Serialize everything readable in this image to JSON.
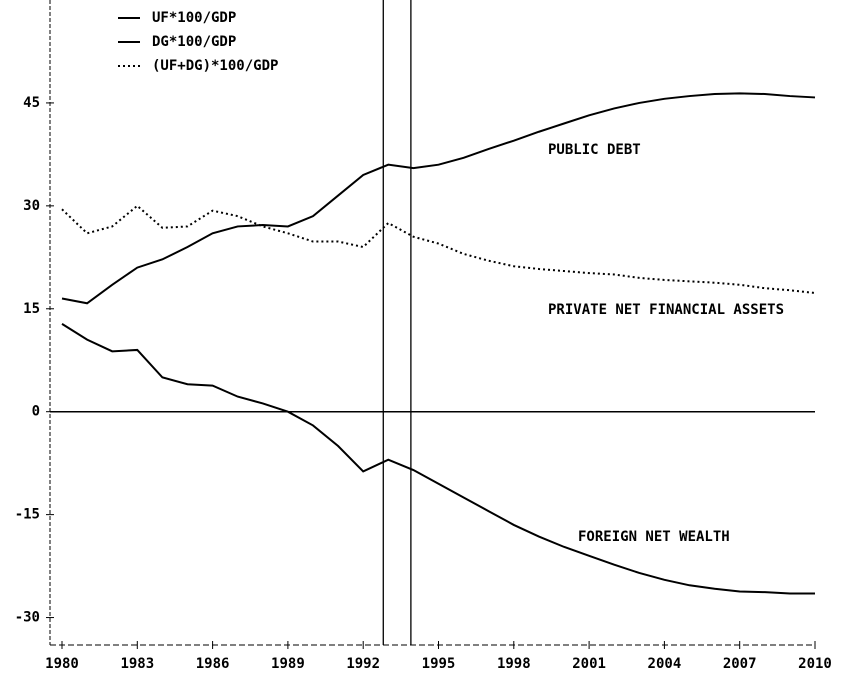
{
  "chart_data": {
    "type": "line",
    "x": [
      1980,
      1981,
      1982,
      1983,
      1984,
      1985,
      1986,
      1987,
      1988,
      1989,
      1990,
      1991,
      1992,
      1993,
      1994,
      1995,
      1996,
      1997,
      1998,
      1999,
      2000,
      2001,
      2002,
      2003,
      2004,
      2005,
      2006,
      2007,
      2008,
      2009,
      2010
    ],
    "series": [
      {
        "name": "UF*100/GDP",
        "color": "#000000",
        "style": "solid",
        "values": [
          12.8,
          10.5,
          8.8,
          9,
          5,
          4,
          3.8,
          2.2,
          1.2,
          0,
          -2,
          -5,
          -8.7,
          -7,
          -8.5,
          -10.5,
          -12.5,
          -14.5,
          -16.5,
          -18.2,
          -19.7,
          -21,
          -22.3,
          -23.5,
          -24.5,
          -25.3,
          -25.8,
          -26.2,
          -26.3,
          -26.5,
          -26.5
        ]
      },
      {
        "name": "DG*100/GDP",
        "color": "#000000",
        "style": "solid",
        "values": [
          16.5,
          15.8,
          18.5,
          21,
          22.2,
          24,
          26,
          27,
          27.2,
          27,
          28.5,
          31.5,
          34.5,
          36,
          35.5,
          36,
          37,
          38.3,
          39.5,
          40.8,
          42,
          43.2,
          44.2,
          45,
          45.6,
          46,
          46.3,
          46.4,
          46.3,
          46,
          45.8
        ]
      },
      {
        "name": "(UF+DG)*100/GDP",
        "color": "#000000",
        "style": "dotted",
        "values": [
          29.5,
          26,
          27,
          30,
          26.8,
          27,
          29.3,
          28.5,
          27,
          26,
          24.8,
          24.8,
          24,
          27.5,
          25.5,
          24.5,
          23,
          22,
          21.2,
          20.8,
          20.5,
          20.2,
          20,
          19.5,
          19.2,
          19,
          18.8,
          18.5,
          18,
          17.7,
          17.3
        ]
      }
    ],
    "annotations": [
      "PUBLIC DEBT",
      "PRIVATE NET FINANCIAL ASSETS",
      "FOREIGN NET WEALTH"
    ],
    "vlines": [
      1992.8,
      1993.9
    ],
    "xlim": [
      1980,
      2010
    ],
    "xticks": [
      1980,
      1983,
      1986,
      1989,
      1992,
      1995,
      1998,
      2001,
      2004,
      2007,
      2010
    ],
    "ylim": [
      -34,
      60
    ],
    "yticks": [
      -30,
      -15,
      0,
      15,
      30,
      45
    ],
    "zero_line": true,
    "legend": "top-left"
  }
}
